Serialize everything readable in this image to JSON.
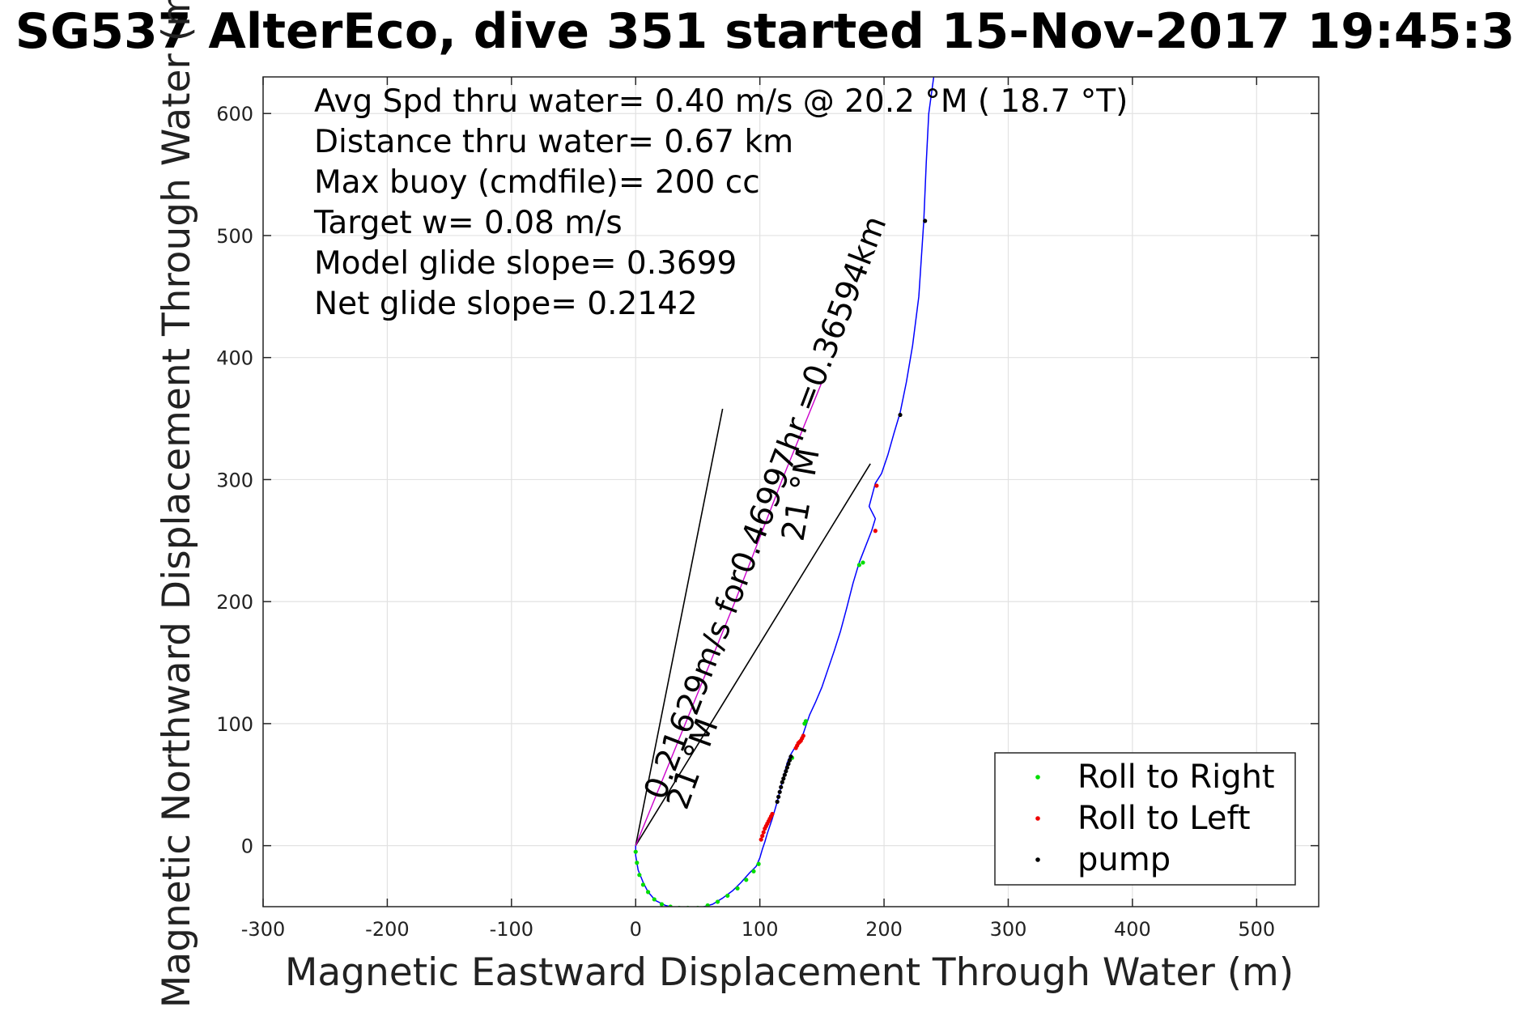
{
  "chart_data": {
    "type": "line",
    "title": "SG537 AlterEco, dive 351 started 15-Nov-2017 19:45:3",
    "xlabel": "Magnetic Eastward Displacement Through Water (m)",
    "ylabel": "Magnetic Northward Displacement Through Water (m)",
    "xlim": [
      -300,
      550
    ],
    "ylim": [
      -50,
      630
    ],
    "xticks": [
      -300,
      -200,
      -100,
      0,
      100,
      200,
      300,
      400,
      500
    ],
    "yticks": [
      0,
      100,
      200,
      300,
      400,
      500,
      600
    ],
    "grid": true,
    "annotations": [
      "Avg Spd thru water=  0.40 m/s @  20.2 °M ( 18.7 °T)",
      "Distance thru water=  0.67 km",
      "Max buoy (cmdfile)= 200 cc",
      "Target w= 0.08 m/s",
      "Model glide slope= 0.3699",
      "Net glide slope= 0.2142"
    ],
    "slope_labels": [
      "0.21629m/s for0.46997hr =0.36594km",
      "21 °M",
      "21 °M"
    ],
    "legend": {
      "position": "bottom-right",
      "entries": [
        {
          "name": "Roll to Right",
          "color": "#00dd00"
        },
        {
          "name": "Roll to Left",
          "color": "#ee0000"
        },
        {
          "name": "pump",
          "color": "#000000"
        }
      ]
    },
    "series": [
      {
        "kind": "track",
        "color": "#0000ff",
        "x": [
          0,
          0,
          2,
          6,
          10,
          16,
          24,
          32,
          40,
          48,
          55,
          62,
          70,
          78,
          85,
          92,
          97,
          100,
          102,
          104,
          106,
          108,
          110,
          112,
          114,
          116,
          118,
          120,
          122,
          125,
          128,
          132,
          135,
          137,
          140,
          145,
          150,
          155,
          160,
          165,
          170,
          175,
          180,
          185,
          190,
          193,
          188,
          193,
          198,
          203,
          208,
          213,
          218,
          223,
          228,
          232,
          234,
          236,
          240
        ],
        "y": [
          0,
          -8,
          -20,
          -30,
          -38,
          -45,
          -49,
          -51,
          -51,
          -51,
          -50,
          -48,
          -43,
          -37,
          -30,
          -22,
          -17,
          -10,
          -3,
          3,
          10,
          16,
          22,
          29,
          36,
          44,
          52,
          60,
          68,
          75,
          80,
          86,
          92,
          98,
          107,
          118,
          130,
          145,
          160,
          176,
          195,
          215,
          232,
          245,
          258,
          268,
          278,
          297,
          305,
          320,
          338,
          355,
          380,
          410,
          450,
          512,
          560,
          600,
          630
        ]
      },
      {
        "kind": "heading-line",
        "color": "#cc00cc",
        "x": [
          0,
          40,
          80,
          118,
          150
        ],
        "y": [
          0,
          100,
          200,
          300,
          380
        ]
      },
      {
        "kind": "guide-line",
        "color": "#000000",
        "x": [
          0,
          70
        ],
        "y": [
          0,
          358
        ]
      },
      {
        "kind": "guide-line",
        "color": "#000000",
        "x": [
          0,
          189
        ],
        "y": [
          0,
          313
        ]
      },
      {
        "name": "Roll to Right",
        "kind": "markers",
        "color": "#00dd00",
        "x": [
          0,
          1,
          3,
          6,
          10,
          15,
          21,
          28,
          35,
          42,
          50,
          58,
          66,
          74,
          82,
          89,
          95,
          99,
          126,
          136,
          137,
          180,
          183
        ],
        "y": [
          -5,
          -14,
          -24,
          -32,
          -38,
          -44,
          -48,
          -50,
          -51,
          -51,
          -51,
          -49,
          -46,
          -41,
          -35,
          -28,
          -21,
          -15,
          72,
          100,
          102,
          230,
          232
        ]
      },
      {
        "name": "Roll to Left",
        "kind": "markers",
        "color": "#ee0000",
        "x": [
          101,
          102,
          103,
          104,
          105,
          106,
          107,
          108,
          109,
          110,
          129,
          130,
          131,
          132,
          133,
          134,
          135,
          193,
          194
        ],
        "y": [
          5,
          8,
          11,
          14,
          16,
          18,
          20,
          22,
          24,
          26,
          80,
          82,
          84,
          85,
          86,
          88,
          90,
          258,
          295
        ]
      },
      {
        "name": "pump",
        "kind": "markers",
        "color": "#000000",
        "x": [
          114,
          115,
          116,
          117,
          118,
          119,
          120,
          121,
          122,
          123,
          124,
          125,
          213,
          233
        ],
        "y": [
          36,
          40,
          44,
          48,
          52,
          55,
          58,
          61,
          64,
          67,
          70,
          73,
          353,
          512
        ]
      }
    ]
  }
}
